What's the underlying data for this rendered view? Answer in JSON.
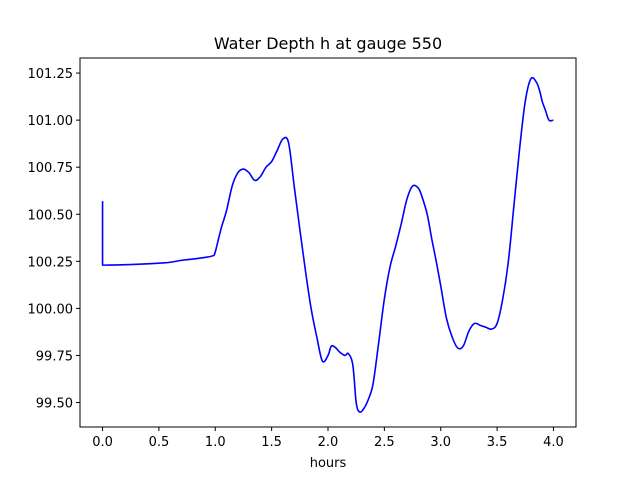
{
  "chart_data": {
    "type": "line",
    "title": "Water Depth h at gauge 550",
    "xlabel": "hours",
    "ylabel": "",
    "xlim": [
      -0.2,
      4.2
    ],
    "ylim": [
      99.37,
      101.33
    ],
    "grid": false,
    "x_ticks": [
      0.0,
      0.5,
      1.0,
      1.5,
      2.0,
      2.5,
      3.0,
      3.5,
      4.0
    ],
    "x_tick_labels": [
      "0.0",
      "0.5",
      "1.0",
      "1.5",
      "2.0",
      "2.5",
      "3.0",
      "3.5",
      "4.0"
    ],
    "y_ticks": [
      99.5,
      99.75,
      100.0,
      100.25,
      100.5,
      100.75,
      101.0,
      101.25
    ],
    "y_tick_labels": [
      "99.50",
      "99.75",
      "100.00",
      "100.25",
      "100.50",
      "100.75",
      "101.00",
      "101.25"
    ],
    "series": [
      {
        "color": "#0000ff",
        "x": [
          0.0,
          0.0,
          0.05,
          0.2,
          0.4,
          0.55,
          0.6,
          0.7,
          0.8,
          0.9,
          0.98,
          1.0,
          1.05,
          1.1,
          1.15,
          1.2,
          1.25,
          1.3,
          1.35,
          1.4,
          1.45,
          1.5,
          1.55,
          1.6,
          1.65,
          1.7,
          1.75,
          1.8,
          1.85,
          1.9,
          1.95,
          2.0,
          2.03,
          2.07,
          2.1,
          2.15,
          2.18,
          2.22,
          2.25,
          2.28,
          2.32,
          2.36,
          2.4,
          2.45,
          2.5,
          2.55,
          2.6,
          2.65,
          2.7,
          2.75,
          2.8,
          2.83,
          2.88,
          2.92,
          2.96,
          3.0,
          3.05,
          3.1,
          3.15,
          3.2,
          3.25,
          3.3,
          3.35,
          3.4,
          3.45,
          3.5,
          3.55,
          3.6,
          3.65,
          3.7,
          3.75,
          3.8,
          3.85,
          3.88,
          3.9,
          3.93,
          3.96,
          4.0
        ],
        "y": [
          100.57,
          100.23,
          100.23,
          100.232,
          100.237,
          100.242,
          100.245,
          100.255,
          100.262,
          100.27,
          100.28,
          100.3,
          100.42,
          100.52,
          100.65,
          100.72,
          100.74,
          100.72,
          100.68,
          100.7,
          100.75,
          100.78,
          100.84,
          100.9,
          100.88,
          100.65,
          100.42,
          100.2,
          100.0,
          99.85,
          99.72,
          99.75,
          99.8,
          99.79,
          99.77,
          99.75,
          99.76,
          99.7,
          99.5,
          99.45,
          99.47,
          99.52,
          99.6,
          99.82,
          100.05,
          100.22,
          100.33,
          100.45,
          100.58,
          100.65,
          100.64,
          100.6,
          100.5,
          100.37,
          100.25,
          100.12,
          99.95,
          99.85,
          99.79,
          99.8,
          99.88,
          99.92,
          99.91,
          99.9,
          99.89,
          99.92,
          100.05,
          100.25,
          100.55,
          100.85,
          101.1,
          101.22,
          101.2,
          101.15,
          101.1,
          101.05,
          101.0,
          101.0
        ]
      }
    ]
  }
}
